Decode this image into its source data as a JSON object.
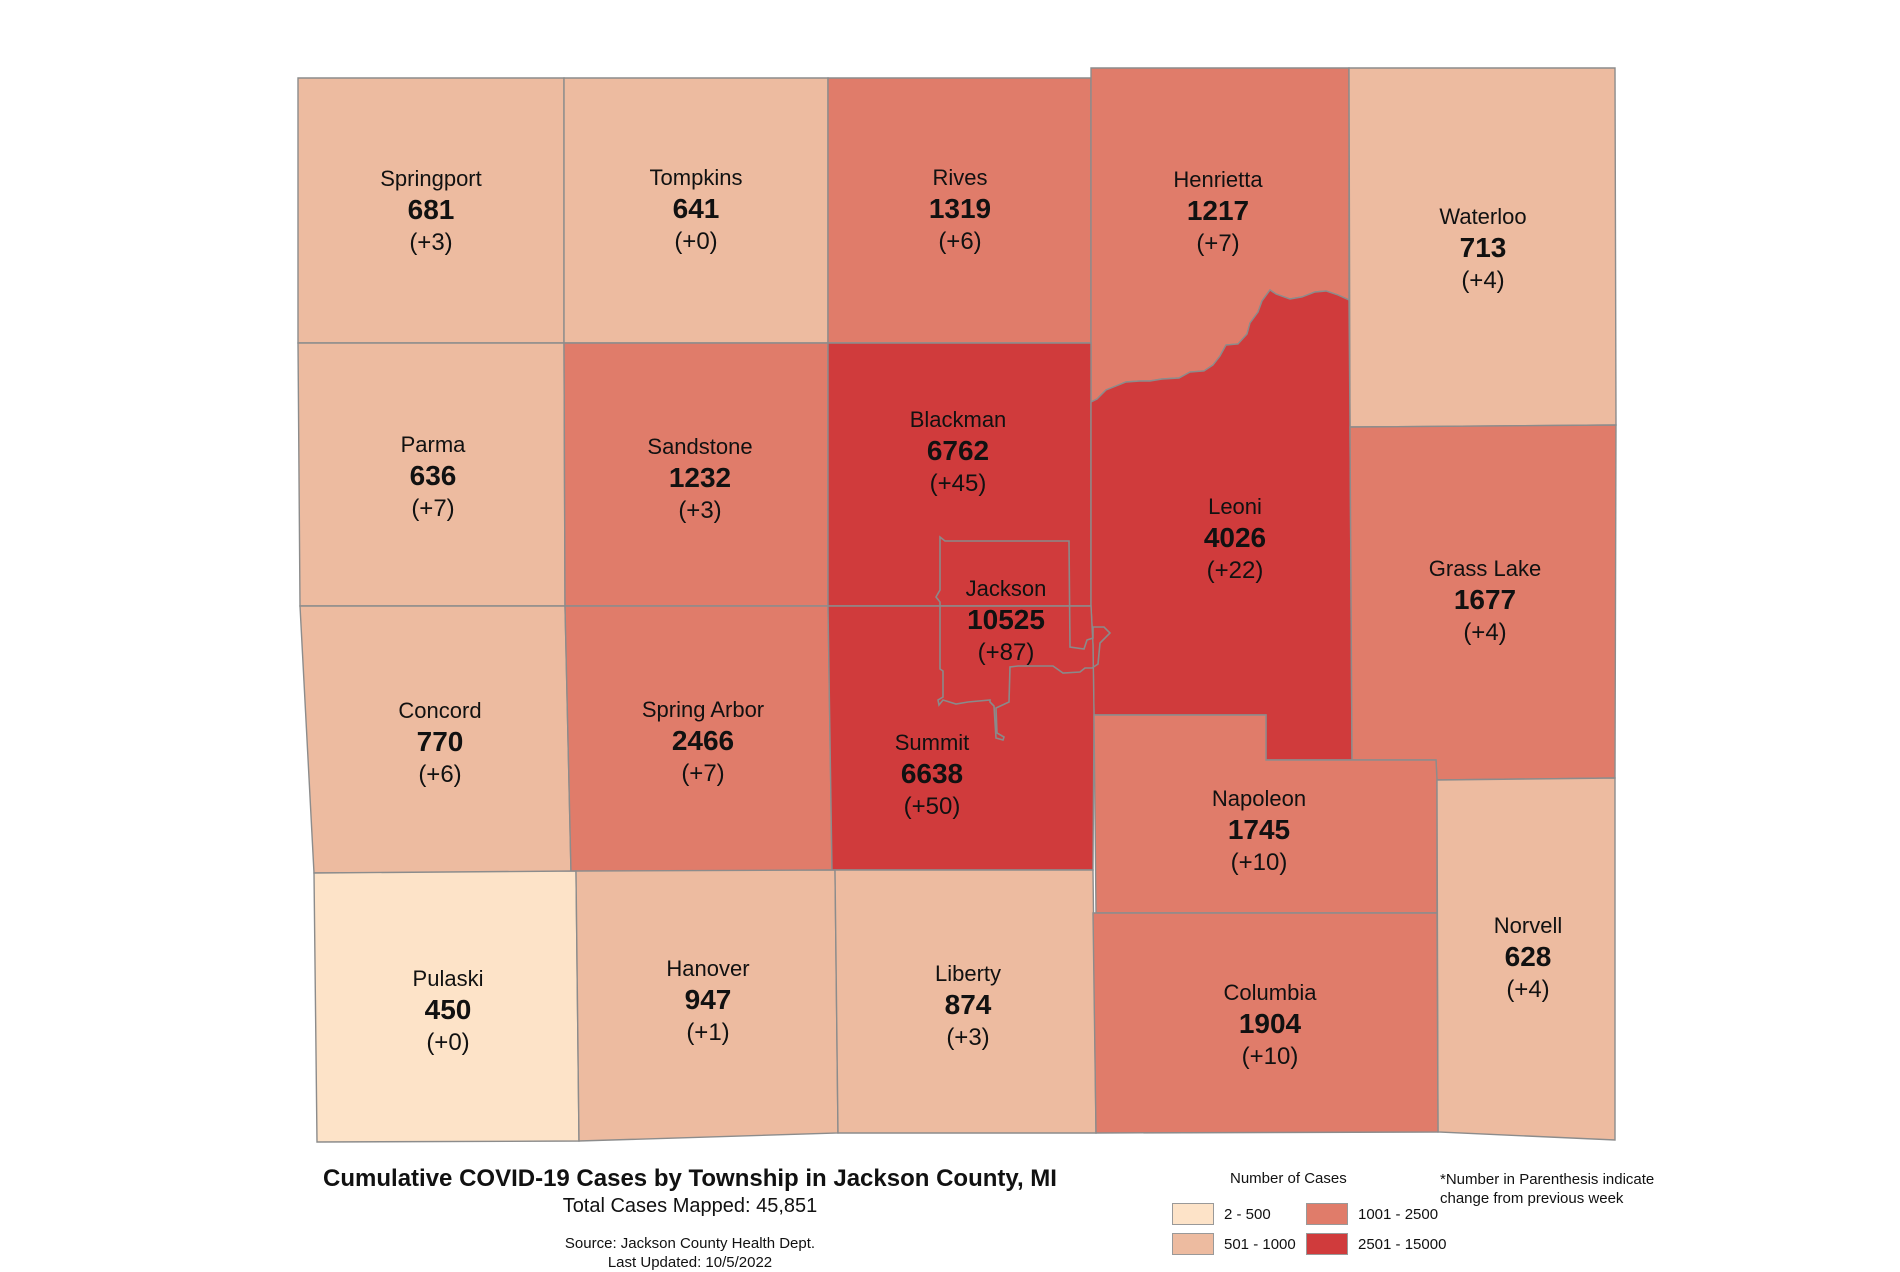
{
  "map": {
    "title": "Cumulative COVID-19 Cases by Township in Jackson County, MI",
    "total_cases_label": "Total Cases Mapped: 45,851",
    "source_line": "Source: Jackson County Health Dept.",
    "updated_line": "Last Updated: 10/5/2022",
    "note": "*Number in Parenthesis indicate change from previous week"
  },
  "legend": {
    "title": "Number of Cases",
    "items": [
      {
        "label": "2 - 500",
        "color": "#fde3c8"
      },
      {
        "label": "501 - 1000",
        "color": "#edbba0"
      },
      {
        "label": "1001 - 2500",
        "color": "#e07c6a"
      },
      {
        "label": "2501 - 15000",
        "color": "#d03b3c"
      }
    ]
  },
  "townships": [
    {
      "name": "Springport",
      "cases": "681",
      "change": "(+3)",
      "class": 1
    },
    {
      "name": "Tompkins",
      "cases": "641",
      "change": "(+0)",
      "class": 1
    },
    {
      "name": "Rives",
      "cases": "1319",
      "change": "(+6)",
      "class": 2
    },
    {
      "name": "Henrietta",
      "cases": "1217",
      "change": "(+7)",
      "class": 2
    },
    {
      "name": "Waterloo",
      "cases": "713",
      "change": "(+4)",
      "class": 1
    },
    {
      "name": "Parma",
      "cases": "636",
      "change": "(+7)",
      "class": 1
    },
    {
      "name": "Sandstone",
      "cases": "1232",
      "change": "(+3)",
      "class": 2
    },
    {
      "name": "Blackman",
      "cases": "6762",
      "change": "(+45)",
      "class": 3
    },
    {
      "name": "Leoni",
      "cases": "4026",
      "change": "(+22)",
      "class": 3
    },
    {
      "name": "Grass Lake",
      "cases": "1677",
      "change": "(+4)",
      "class": 2
    },
    {
      "name": "Jackson",
      "cases": "10525",
      "change": "(+87)",
      "class": 3
    },
    {
      "name": "Concord",
      "cases": "770",
      "change": "(+6)",
      "class": 1
    },
    {
      "name": "Spring Arbor",
      "cases": "2466",
      "change": "(+7)",
      "class": 2
    },
    {
      "name": "Summit",
      "cases": "6638",
      "change": "(+50)",
      "class": 3
    },
    {
      "name": "Napoleon",
      "cases": "1745",
      "change": "(+10)",
      "class": 2
    },
    {
      "name": "Norvell",
      "cases": "628",
      "change": "(+4)",
      "class": 1
    },
    {
      "name": "Pulaski",
      "cases": "450",
      "change": "(+0)",
      "class": 0
    },
    {
      "name": "Hanover",
      "cases": "947",
      "change": "(+1)",
      "class": 1
    },
    {
      "name": "Liberty",
      "cases": "874",
      "change": "(+3)",
      "class": 1
    },
    {
      "name": "Columbia",
      "cases": "1904",
      "change": "(+10)",
      "class": 2
    }
  ]
}
